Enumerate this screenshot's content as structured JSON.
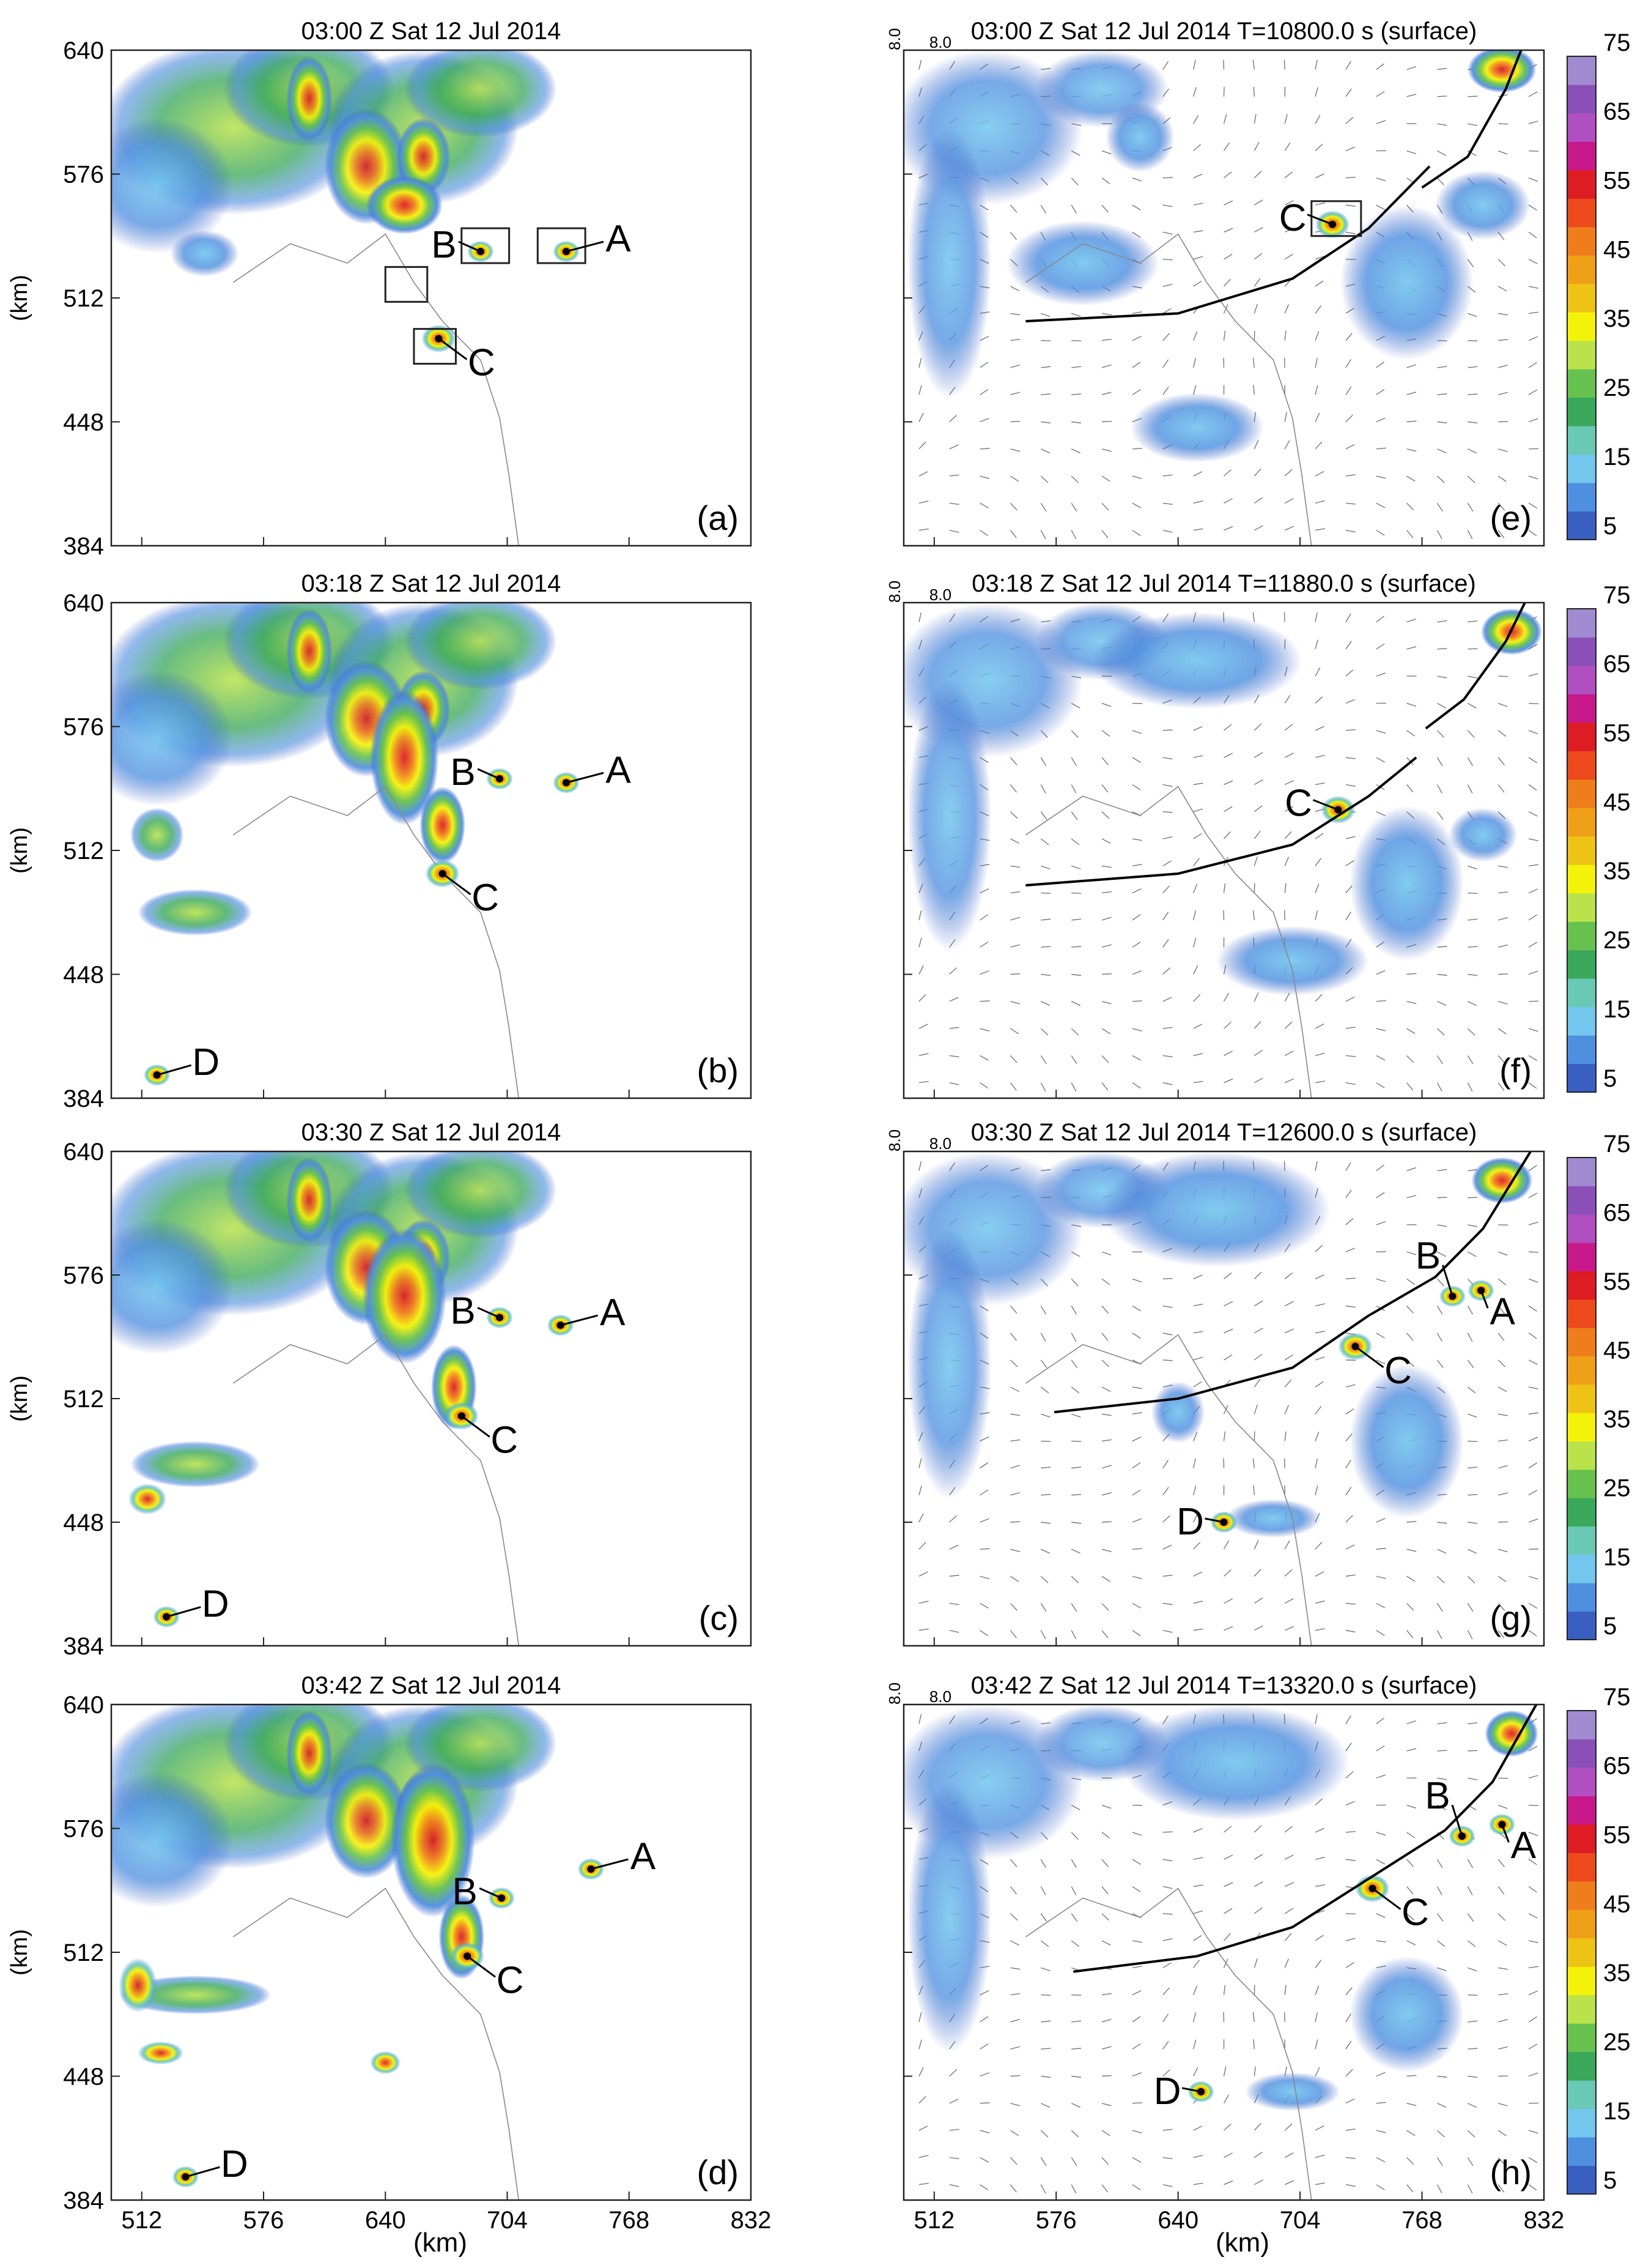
{
  "figure": {
    "x_axis_label": "(km)",
    "y_axis_label": "(km)",
    "x_ticks": [
      "512",
      "576",
      "640",
      "704",
      "768",
      "832"
    ],
    "y_ticks": [
      "640",
      "576",
      "512",
      "448",
      "384"
    ]
  },
  "colorbar": {
    "ticks": [
      "75",
      "65",
      "55",
      "45",
      "35",
      "25",
      "15",
      "5"
    ],
    "colors": [
      "#3a5fc2",
      "#4e8fe0",
      "#73c6ee",
      "#69c9b5",
      "#3aa85a",
      "#67c14f",
      "#b9e24b",
      "#f5f20a",
      "#efc315",
      "#f0a018",
      "#f07d1c",
      "#ec4a1c",
      "#dd1c24",
      "#c8188a",
      "#b04fc2",
      "#8a50b8",
      "#a08ad0"
    ]
  },
  "vector_ref": {
    "v": "8.0",
    "h": "8.0"
  },
  "panels": [
    {
      "id": "a",
      "label": "(a)",
      "title": "03:00 Z Sat 12 Jul 2014",
      "column": "radar",
      "storms": [
        {
          "name": "A",
          "x": 735,
          "y": 536
        },
        {
          "name": "B",
          "x": 690,
          "y": 536
        },
        {
          "name": "C",
          "x": 668,
          "y": 491
        }
      ]
    },
    {
      "id": "b",
      "label": "(b)",
      "title": "03:18 Z Sat 12 Jul 2014",
      "column": "radar",
      "storms": [
        {
          "name": "A",
          "x": 735,
          "y": 547
        },
        {
          "name": "B",
          "x": 700,
          "y": 549
        },
        {
          "name": "C",
          "x": 670,
          "y": 500
        },
        {
          "name": "D",
          "x": 520,
          "y": 396
        }
      ]
    },
    {
      "id": "c",
      "label": "(c)",
      "title": "03:30 Z Sat 12 Jul 2014",
      "column": "radar",
      "storms": [
        {
          "name": "A",
          "x": 732,
          "y": 550
        },
        {
          "name": "B",
          "x": 700,
          "y": 554
        },
        {
          "name": "C",
          "x": 680,
          "y": 503
        },
        {
          "name": "D",
          "x": 525,
          "y": 399
        }
      ]
    },
    {
      "id": "d",
      "label": "(d)",
      "title": "03:42 Z Sat 12 Jul 2014",
      "column": "radar",
      "storms": [
        {
          "name": "A",
          "x": 748,
          "y": 555
        },
        {
          "name": "B",
          "x": 701,
          "y": 540
        },
        {
          "name": "C",
          "x": 683,
          "y": 510
        },
        {
          "name": "D",
          "x": 535,
          "y": 396
        }
      ]
    },
    {
      "id": "e",
      "label": "(e)",
      "title": "03:00 Z Sat 12 Jul 2014 T=10800.0 s (surface)",
      "column": "model",
      "storms": [
        {
          "name": "C",
          "x": 721,
          "y": 550
        }
      ]
    },
    {
      "id": "f",
      "label": "(f)",
      "title": "03:18 Z Sat 12 Jul 2014 T=11880.0 s (surface)",
      "column": "model",
      "storms": [
        {
          "name": "C",
          "x": 724,
          "y": 533
        }
      ]
    },
    {
      "id": "g",
      "label": "(g)",
      "title": "03:30 Z Sat 12 Jul 2014 T=12600.0 s (surface)",
      "column": "model",
      "storms": [
        {
          "name": "A",
          "x": 799,
          "y": 568
        },
        {
          "name": "B",
          "x": 784,
          "y": 565
        },
        {
          "name": "C",
          "x": 733,
          "y": 539
        },
        {
          "name": "D",
          "x": 664,
          "y": 448
        }
      ]
    },
    {
      "id": "h",
      "label": "(h)",
      "title": "03:42 Z Sat 12 Jul 2014 T=13320.0 s (surface)",
      "column": "model",
      "storms": [
        {
          "name": "A",
          "x": 810,
          "y": 578
        },
        {
          "name": "B",
          "x": 789,
          "y": 572
        },
        {
          "name": "C",
          "x": 742,
          "y": 545
        },
        {
          "name": "D",
          "x": 652,
          "y": 440
        }
      ]
    }
  ],
  "chart_data": {
    "type": "heatmap",
    "panels": 8,
    "xlabel": "(km)",
    "ylabel": "(km)",
    "xlim": [
      496,
      832
    ],
    "ylim": [
      384,
      640
    ],
    "colorbar_range": [
      5,
      75
    ],
    "colorbar_step": 5,
    "colorbar_labels": [
      5,
      15,
      25,
      35,
      45,
      55,
      65,
      75
    ],
    "storms_labeled": [
      "A",
      "B",
      "C",
      "D"
    ]
  }
}
